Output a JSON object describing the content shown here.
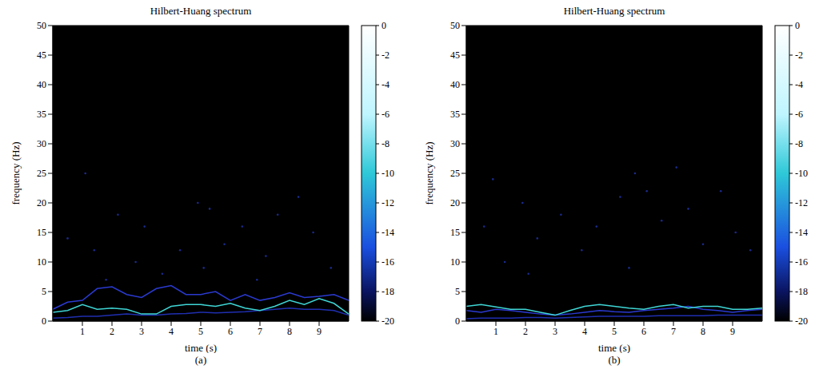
{
  "chart_data": [
    {
      "type": "line",
      "label": "(a)",
      "title": "Hilbert-Huang spectrum",
      "x_label": "time (s)",
      "y_label": "frequency (Hz)",
      "xlim": [
        0,
        10
      ],
      "ylim": [
        0,
        50
      ],
      "xticks": [
        1,
        2,
        3,
        4,
        5,
        6,
        7,
        8,
        9
      ],
      "yticks": [
        0,
        5,
        10,
        15,
        20,
        25,
        30,
        35,
        40,
        45,
        50
      ],
      "colorbar": {
        "range": [
          -20,
          0
        ],
        "ticks": [
          0,
          -2,
          -4,
          -6,
          -8,
          -10,
          -12,
          -14,
          -16,
          -18,
          -20
        ]
      },
      "series": [
        {
          "type": "line",
          "color": "#1f2fb0",
          "x": [
            0,
            0.5,
            1,
            1.5,
            2,
            2.5,
            3,
            3.5,
            4,
            4.5,
            5,
            5.5,
            6,
            6.5,
            7,
            7.5,
            8,
            8.5,
            9,
            9.5,
            10
          ],
          "values": [
            0.5,
            0.6,
            0.8,
            0.8,
            1.0,
            1.2,
            1.0,
            1.0,
            1.2,
            1.3,
            1.5,
            1.4,
            1.5,
            1.6,
            1.8,
            2.0,
            2.2,
            2.0,
            2.0,
            1.8,
            1.0
          ]
        },
        {
          "type": "line",
          "color": "#2a3ad0",
          "x": [
            0,
            0.5,
            1,
            1.5,
            2,
            2.5,
            3,
            3.5,
            4,
            4.5,
            5,
            5.5,
            6,
            6.5,
            7,
            7.5,
            8,
            8.5,
            9,
            9.5,
            10
          ],
          "values": [
            2.0,
            3.2,
            3.5,
            5.5,
            5.8,
            4.5,
            4.0,
            5.5,
            6.0,
            4.5,
            4.5,
            5.0,
            3.5,
            4.5,
            3.5,
            4.0,
            4.8,
            4.0,
            4.2,
            4.5,
            3.5
          ]
        },
        {
          "type": "line",
          "color": "#3fd6d6",
          "x": [
            0,
            0.5,
            1,
            1.5,
            2,
            2.5,
            3,
            3.5,
            4,
            4.5,
            5,
            5.5,
            6,
            6.5,
            7,
            7.5,
            8,
            8.5,
            9,
            9.5,
            10
          ],
          "values": [
            1.5,
            1.8,
            2.8,
            2.0,
            2.2,
            2.0,
            1.2,
            1.2,
            2.5,
            2.8,
            2.8,
            2.5,
            3.0,
            2.2,
            1.8,
            2.5,
            3.5,
            2.8,
            3.8,
            3.0,
            1.2
          ]
        },
        {
          "type": "scatter",
          "color": "#1a2a8a",
          "x": [
            0.5,
            1.1,
            1.4,
            2.2,
            2.8,
            3.1,
            3.7,
            4.3,
            4.9,
            5.3,
            5.8,
            6.4,
            7.2,
            7.6,
            8.3,
            8.8,
            9.4,
            1.8,
            5.1,
            6.9
          ],
          "values": [
            14,
            25,
            12,
            18,
            10,
            16,
            8,
            12,
            20,
            19,
            13,
            16,
            11,
            18,
            21,
            15,
            9,
            7,
            9,
            7
          ]
        }
      ]
    },
    {
      "type": "line",
      "label": "(b)",
      "title": "Hilbert-Huang spectrum",
      "x_label": "time (s)",
      "y_label": "frequency (Hz)",
      "xlim": [
        0,
        10
      ],
      "ylim": [
        0,
        50
      ],
      "xticks": [
        1,
        2,
        3,
        4,
        5,
        6,
        7,
        8,
        9
      ],
      "yticks": [
        0,
        5,
        10,
        15,
        20,
        25,
        30,
        35,
        40,
        45,
        50
      ],
      "colorbar": {
        "range": [
          -20,
          0
        ],
        "ticks": [
          0,
          -2,
          -4,
          -6,
          -8,
          -10,
          -12,
          -14,
          -16,
          -18,
          -20
        ]
      },
      "series": [
        {
          "type": "line",
          "color": "#1f2fb0",
          "x": [
            0,
            0.5,
            1,
            1.5,
            2,
            2.5,
            3,
            3.5,
            4,
            4.5,
            5,
            5.5,
            6,
            6.5,
            7,
            7.5,
            8,
            8.5,
            9,
            9.5,
            10
          ],
          "values": [
            0.4,
            0.5,
            0.5,
            0.5,
            0.6,
            0.6,
            0.5,
            0.6,
            0.7,
            0.8,
            0.8,
            0.8,
            0.8,
            0.9,
            0.9,
            0.9,
            0.9,
            1.0,
            1.0,
            1.0,
            1.0
          ]
        },
        {
          "type": "line",
          "color": "#2a3ad0",
          "x": [
            0,
            0.5,
            1,
            1.5,
            2,
            2.5,
            3,
            3.5,
            4,
            4.5,
            5,
            5.5,
            6,
            6.5,
            7,
            7.5,
            8,
            8.5,
            9,
            9.5,
            10
          ],
          "values": [
            1.8,
            1.5,
            2.0,
            1.8,
            1.5,
            1.2,
            1.0,
            1.2,
            1.5,
            1.8,
            1.6,
            1.5,
            1.8,
            2.0,
            2.2,
            2.5,
            2.0,
            1.8,
            1.5,
            1.8,
            2.0
          ]
        },
        {
          "type": "line",
          "color": "#3fd6d6",
          "x": [
            0,
            0.5,
            1,
            1.5,
            2,
            2.5,
            3,
            3.5,
            4,
            4.5,
            5,
            5.5,
            6,
            6.5,
            7,
            7.5,
            8,
            8.5,
            9,
            9.5,
            10
          ],
          "values": [
            2.5,
            2.8,
            2.4,
            2.0,
            2.0,
            1.5,
            1.0,
            1.8,
            2.5,
            2.8,
            2.5,
            2.2,
            2.0,
            2.5,
            2.8,
            2.2,
            2.5,
            2.5,
            2.0,
            2.0,
            2.2
          ]
        },
        {
          "type": "scatter",
          "color": "#1a2a8a",
          "x": [
            0.6,
            0.9,
            1.3,
            1.9,
            2.4,
            3.2,
            3.9,
            4.4,
            5.2,
            5.7,
            6.1,
            6.6,
            7.1,
            7.5,
            8.0,
            8.6,
            9.1,
            9.6,
            2.1,
            5.5
          ],
          "values": [
            16,
            24,
            10,
            20,
            14,
            18,
            12,
            16,
            21,
            25,
            22,
            17,
            26,
            19,
            13,
            22,
            15,
            12,
            8,
            9
          ]
        }
      ]
    }
  ]
}
